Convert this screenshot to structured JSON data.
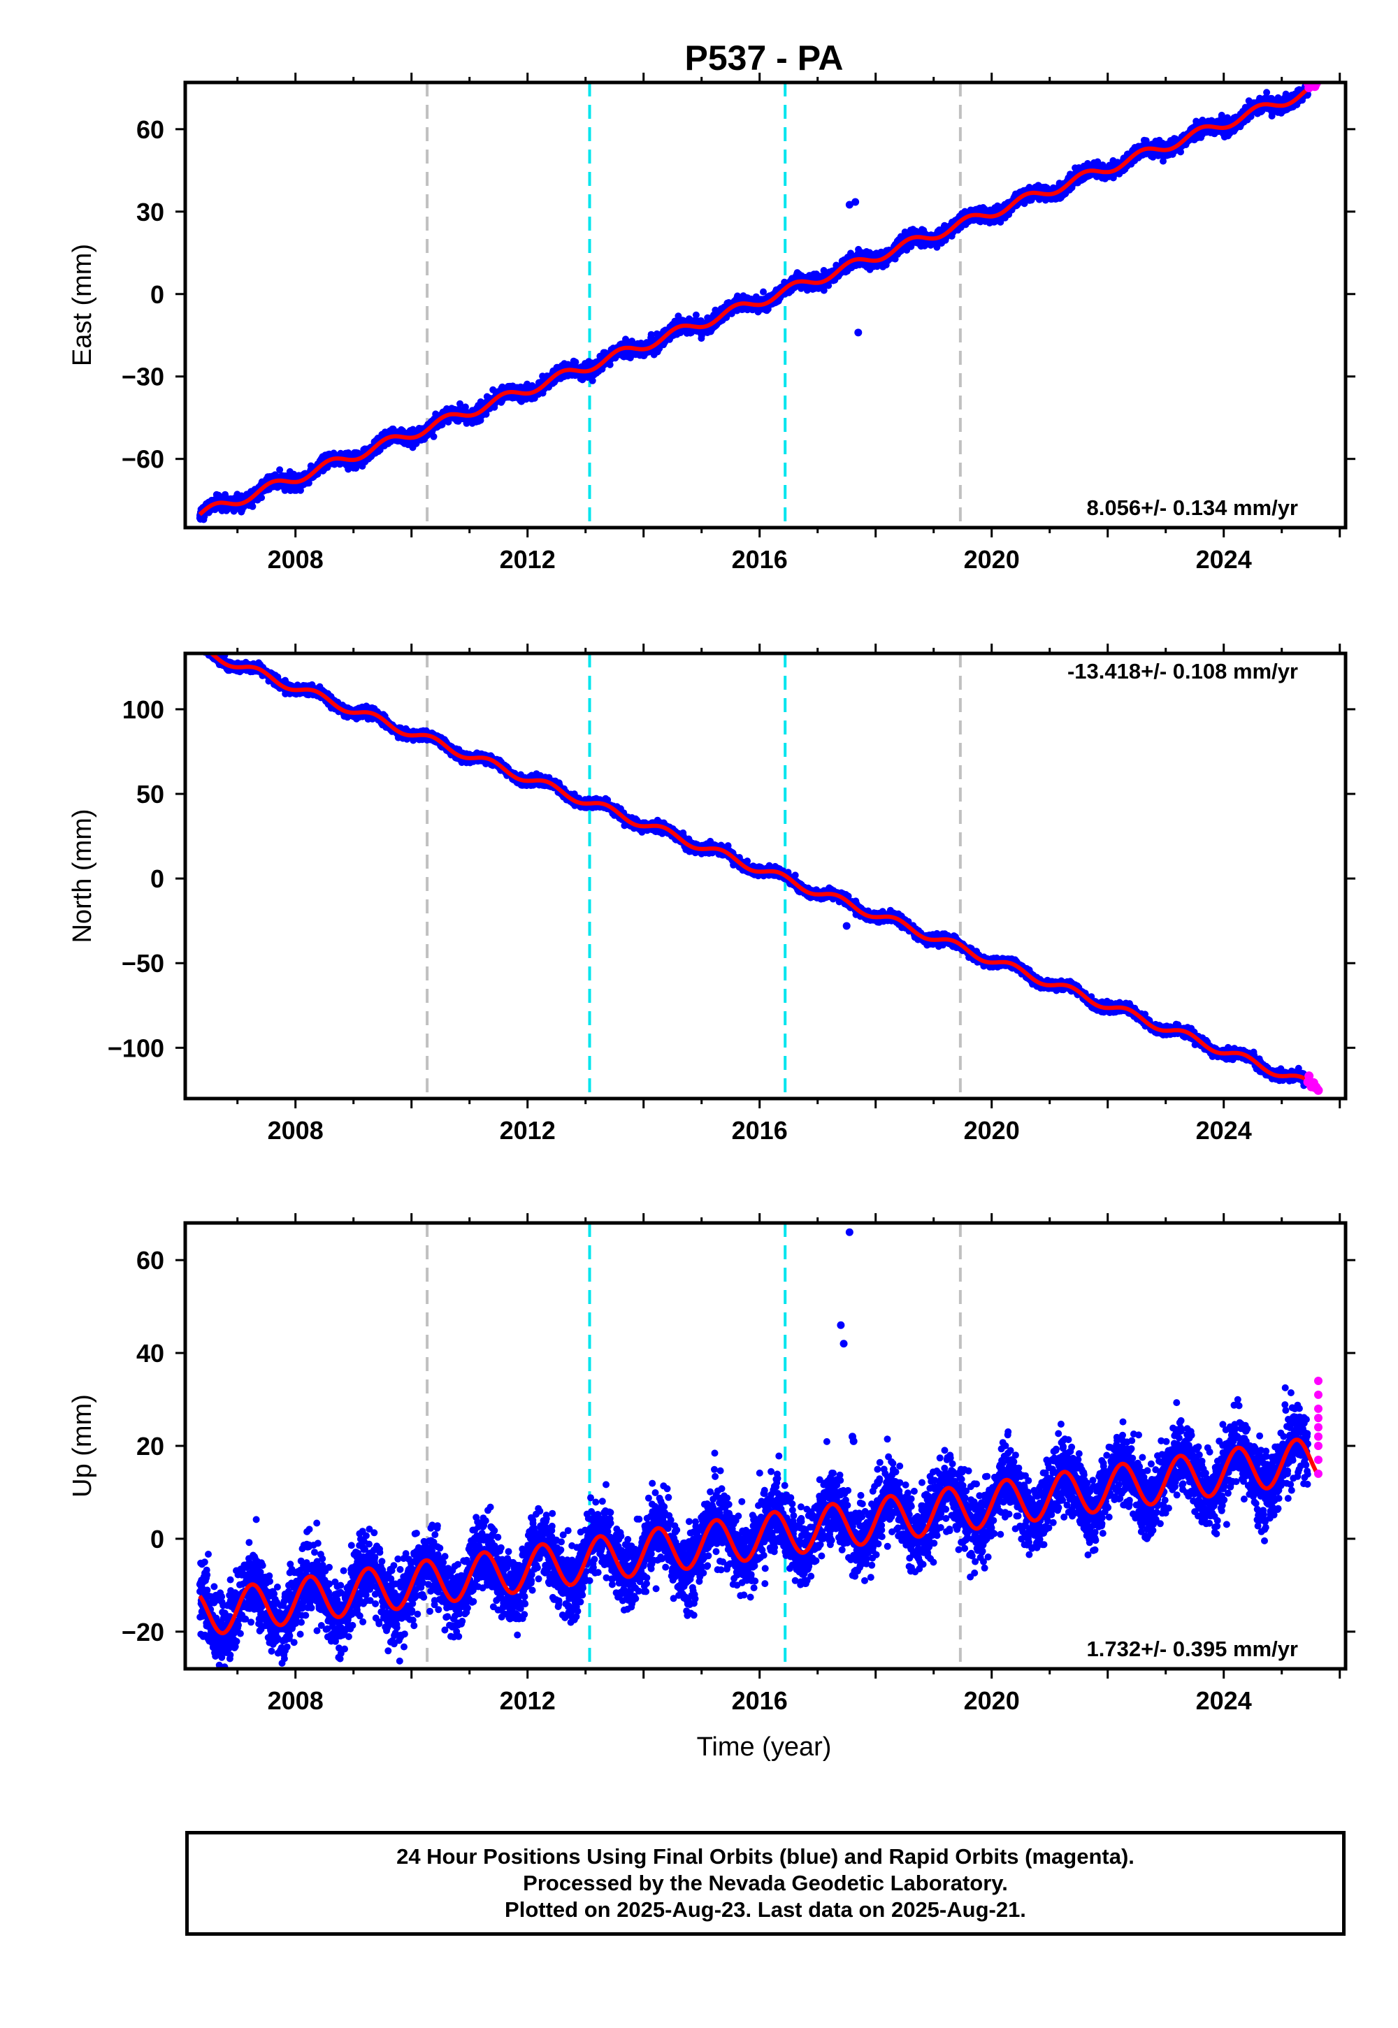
{
  "title": "P537 - PA",
  "x_axis_label": "Time (year)",
  "colors": {
    "final_orbits": "#0000ff",
    "rapid_orbits": "#ff00ff",
    "model": "#ff0000",
    "event_gray": "#c0c0c0",
    "event_cyan": "#00e5ee"
  },
  "footer": {
    "line1": "24 Hour Positions Using Final Orbits (blue) and Rapid Orbits (magenta).",
    "line2": "Processed by the Nevada Geodetic Laboratory.",
    "line3": "Plotted on 2025-Aug-23. Last data on 2025-Aug-21."
  },
  "chart_data": [
    {
      "type": "scatter",
      "component": "East",
      "ylabel": "East (mm)",
      "xlim": [
        2006.1,
        2026.1
      ],
      "ylim": [
        -85,
        77
      ],
      "xticks": [
        2008,
        2012,
        2016,
        2020,
        2024
      ],
      "yticks": [
        -60,
        -30,
        0,
        30,
        60
      ],
      "ytick_labels": [
        "−60",
        "−30",
        "0",
        "30",
        "60"
      ],
      "rate_label": "8.056+/- 0.134 mm/yr",
      "rate_position": "bottom-right",
      "event_lines": [
        {
          "x": 2010.27,
          "color": "gray"
        },
        {
          "x": 2013.07,
          "color": "cyan"
        },
        {
          "x": 2016.44,
          "color": "cyan"
        },
        {
          "x": 2019.46,
          "color": "gray"
        }
      ],
      "trend": {
        "t0": 2016.0,
        "offset": -2.5,
        "rate": 8.056
      },
      "seasonal": {
        "amplitude": 1.8,
        "phase": 0.35
      },
      "noise_sd": 1.2,
      "data_start": 2006.35,
      "final_end": 2025.45,
      "rapid_end": 2025.64,
      "outliers": [
        {
          "x": 2017.55,
          "y": 32.5
        },
        {
          "x": 2017.65,
          "y": 33.5
        },
        {
          "x": 2017.7,
          "y": -14
        }
      ]
    },
    {
      "type": "scatter",
      "component": "North",
      "ylabel": "North (mm)",
      "xlim": [
        2006.1,
        2026.1
      ],
      "ylim": [
        -130,
        133
      ],
      "xticks": [
        2008,
        2012,
        2016,
        2020,
        2024
      ],
      "yticks": [
        -100,
        -50,
        0,
        50,
        100
      ],
      "ytick_labels": [
        "−100",
        "−50",
        "0",
        "50",
        "100"
      ],
      "rate_label": "-13.418+/- 0.108 mm/yr",
      "rate_position": "top-right",
      "event_lines": [
        {
          "x": 2010.27,
          "color": "gray"
        },
        {
          "x": 2013.07,
          "color": "cyan"
        },
        {
          "x": 2016.44,
          "color": "cyan"
        },
        {
          "x": 2019.46,
          "color": "gray"
        }
      ],
      "trend": {
        "t0": 2016.0,
        "offset": 5.5,
        "rate": -13.418
      },
      "seasonal": {
        "amplitude": 2.5,
        "phase": 0.1
      },
      "noise_sd": 1.3,
      "data_start": 2006.35,
      "final_end": 2025.45,
      "rapid_end": 2025.64,
      "outliers": [
        {
          "x": 2017.5,
          "y": -28
        }
      ]
    },
    {
      "type": "scatter",
      "component": "Up",
      "ylabel": "Up (mm)",
      "xlim": [
        2006.1,
        2026.1
      ],
      "ylim": [
        -28,
        68
      ],
      "xticks": [
        2008,
        2012,
        2016,
        2020,
        2024
      ],
      "yticks": [
        -20,
        0,
        20,
        40,
        60
      ],
      "ytick_labels": [
        "−20",
        "0",
        "20",
        "40",
        "60"
      ],
      "rate_label": "1.732+/- 0.395 mm/yr",
      "rate_position": "bottom-right",
      "event_lines": [
        {
          "x": 2010.27,
          "color": "gray"
        },
        {
          "x": 2013.07,
          "color": "cyan"
        },
        {
          "x": 2016.44,
          "color": "cyan"
        },
        {
          "x": 2019.46,
          "color": "gray"
        }
      ],
      "trend": {
        "t0": 2016.0,
        "offset": 0.5,
        "rate": 1.732
      },
      "seasonal": {
        "amplitude": 4.8,
        "phase": 0.0
      },
      "noise_sd": 3.8,
      "data_start": 2006.35,
      "final_end": 2025.45,
      "rapid_end": 2025.64,
      "rapid_values": [
        14,
        17,
        20,
        22,
        24,
        26,
        28,
        31,
        34
      ],
      "outliers": [
        {
          "x": 2017.4,
          "y": 46
        },
        {
          "x": 2017.45,
          "y": 42
        },
        {
          "x": 2017.55,
          "y": 66
        },
        {
          "x": 2017.6,
          "y": 22
        },
        {
          "x": 2017.62,
          "y": 21
        }
      ]
    }
  ]
}
